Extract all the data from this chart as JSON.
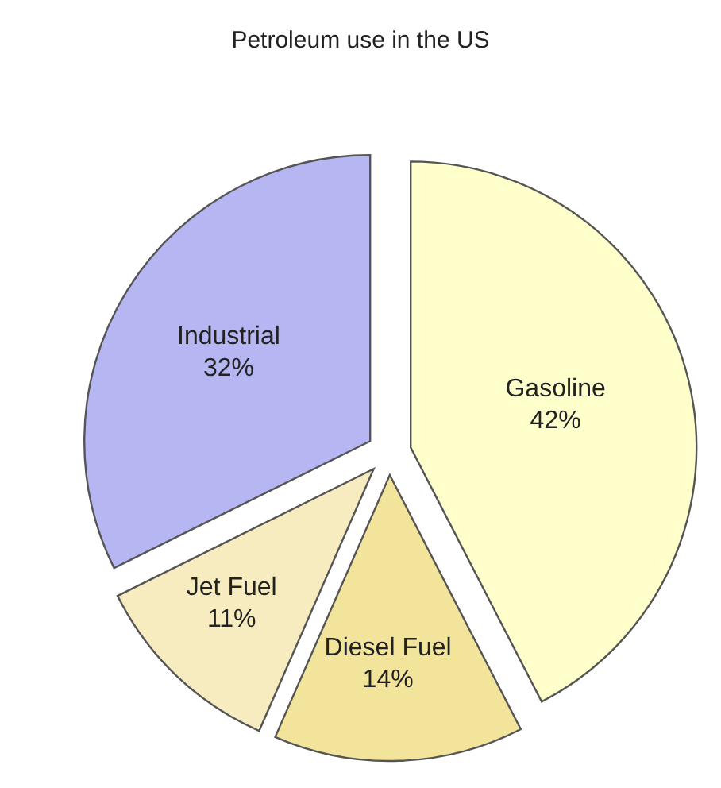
{
  "chart_data": {
    "type": "pie",
    "title": "Petroleum use in the US",
    "categories": [
      "Gasoline",
      "Diesel Fuel",
      "Jet Fuel",
      "Industrial"
    ],
    "values": [
      42,
      14,
      11,
      32
    ],
    "colors": [
      "#ffffcc",
      "#f3e49b",
      "#f6ecbf",
      "#b6b6f2"
    ],
    "value_labels": [
      "42%",
      "14%",
      "11%",
      "32%"
    ]
  }
}
